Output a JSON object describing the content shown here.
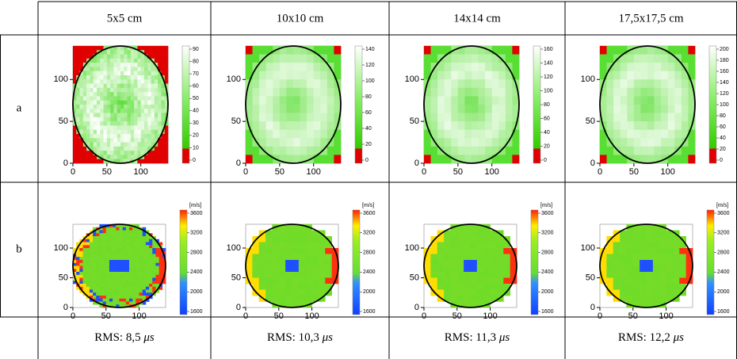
{
  "header": {
    "columns": [
      "5x5 cm",
      "10x10 cm",
      "14x14 cm",
      "17,5x17,5 cm"
    ]
  },
  "rows": [
    {
      "label": "a",
      "axis_ticks": [
        "0",
        "50",
        "100"
      ],
      "colorbars": [
        [
          "90",
          "80",
          "70",
          "60",
          "50",
          "40",
          "30",
          "20",
          "10",
          "0"
        ],
        [
          "140",
          "120",
          "100",
          "80",
          "60",
          "40",
          "20",
          "0"
        ],
        [
          "160",
          "140",
          "120",
          "100",
          "80",
          "60",
          "40",
          "20",
          "0"
        ],
        [
          "200",
          "180",
          "160",
          "140",
          "120",
          "100",
          "80",
          "60",
          "40",
          "20",
          "0"
        ]
      ]
    },
    {
      "label": "b",
      "unit": "[m/s]",
      "axis_ticks": [
        "0",
        "50",
        "100"
      ],
      "colorbars": [
        [
          "3600",
          "3200",
          "2800",
          "2400",
          "2000",
          "1600"
        ],
        [
          "3600",
          "3200",
          "2800",
          "2400",
          "2000",
          "1600"
        ],
        [
          "3600",
          "3200",
          "2800",
          "2400",
          "2000",
          "1600"
        ],
        [
          "3600",
          "3200",
          "2800",
          "2400",
          "2000",
          "1600"
        ]
      ]
    }
  ],
  "footer": [
    {
      "text": "RMS: 8,5",
      "unit": "μs"
    },
    {
      "text": "RMS: 10,3",
      "unit": "μs"
    },
    {
      "text": "RMS: 11,3",
      "unit": "μs"
    },
    {
      "text": "RMS: 12,2",
      "unit": "μs"
    }
  ]
}
